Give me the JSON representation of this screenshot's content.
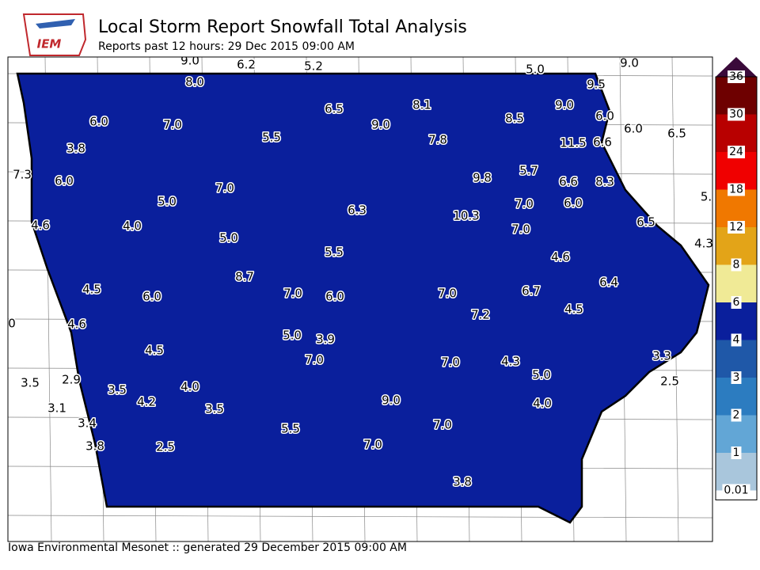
{
  "logo": "IEM",
  "title": "Local Storm Report Snowfall Total Analysis",
  "subtitle": "Reports past 12 hours: 29 Dec 2015 09:00 AM",
  "footer": "Iowa Environmental Mesonet :: generated 29 December 2015 09:00 AM",
  "map_labels": [
    "9.0",
    "6.2",
    "5.2",
    "5.0",
    "9.0",
    "9.5",
    "8.0",
    "6.5",
    "8.1",
    "9.0",
    "8.5",
    "9.0",
    "6.0",
    "6.0",
    "6.5",
    "6.0",
    "7.0",
    "5.5",
    "7.8",
    "11.5",
    "6.6",
    "3.8",
    "7.3",
    "6.0",
    "9.8",
    "5.7",
    "6.6",
    "8.3",
    "5.",
    "7.0",
    "5.0",
    "6.3",
    "10.3",
    "7.0",
    "6.0",
    "6.5",
    "4.3",
    "4.6",
    "4.0",
    "5.0",
    "7.0",
    "5.5",
    "4.6",
    "6.4",
    "8.7",
    "4.5",
    "6.0",
    "7.0",
    "6.0",
    "7.0",
    "6.7",
    "4.5",
    "7.2",
    "0",
    "4.6",
    "5.0",
    "3.9",
    "4.5",
    "3.3",
    "7.0",
    "7.0",
    "4.3",
    "5.0",
    "2.5",
    "3.5",
    "2.9",
    "4.0",
    "3.5",
    "4.2",
    "9.0",
    "4.0",
    "3.1",
    "3.5",
    "3.4",
    "7.0",
    "5.5",
    "3.8",
    "2.5",
    "7.0",
    "3.8"
  ],
  "colorbar": {
    "labels": [
      36,
      30,
      24,
      18,
      12,
      8,
      6,
      4,
      3,
      2,
      1,
      0.01
    ],
    "colors": [
      "#3a0a3a",
      "#6e0000",
      "#b80000",
      "#f00000",
      "#f07800",
      "#e3a418",
      "#f0ea96",
      "#0a1f9c",
      "#1f58a8",
      "#2c7cc0",
      "#62a6d6",
      "#a9c6dc"
    ]
  }
}
